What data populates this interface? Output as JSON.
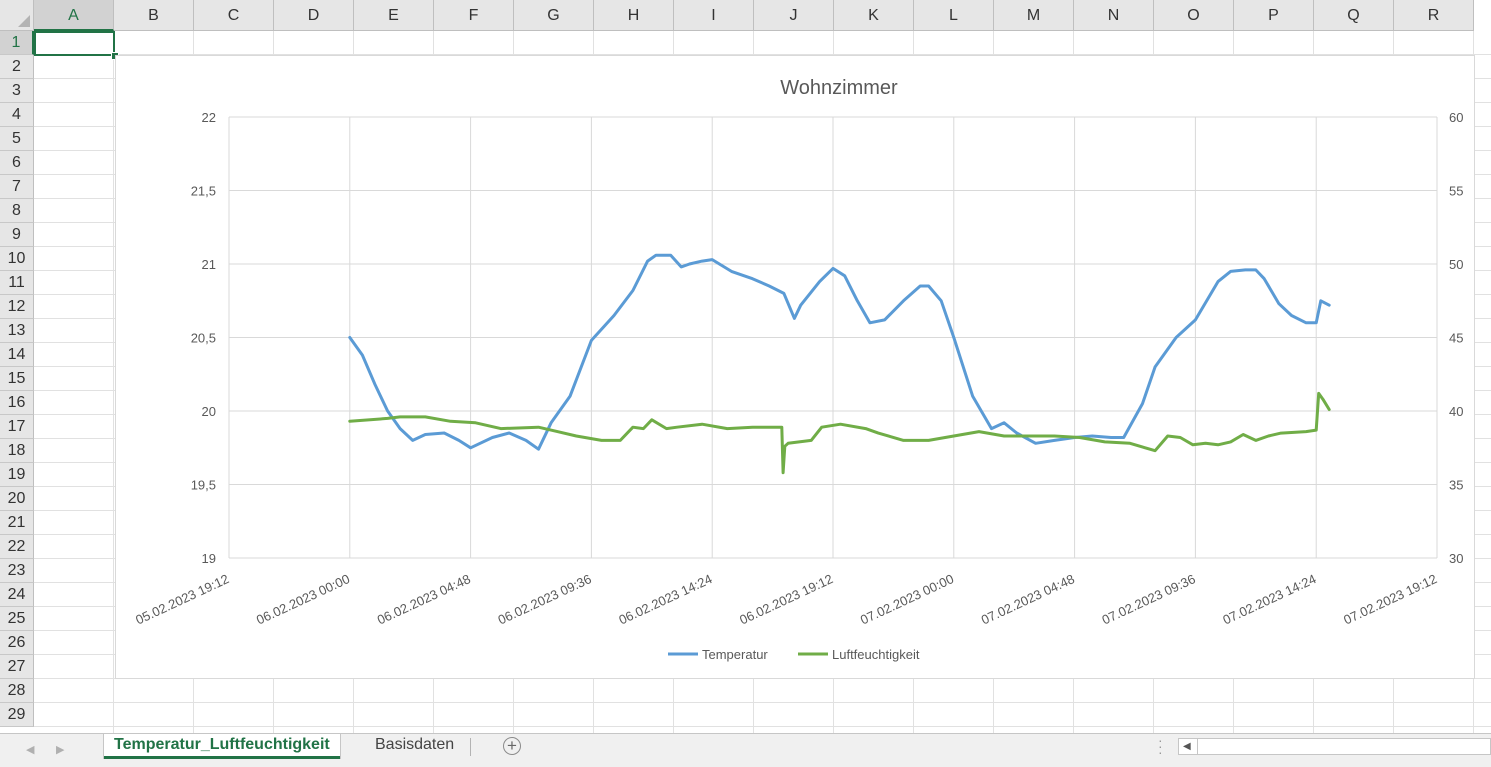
{
  "sheet": {
    "columns": [
      "A",
      "B",
      "C",
      "D",
      "E",
      "F",
      "G",
      "H",
      "I",
      "J",
      "K",
      "L",
      "M",
      "N",
      "O",
      "P",
      "Q",
      "R"
    ],
    "rows": [
      "1",
      "2",
      "3",
      "4",
      "5",
      "6",
      "7",
      "8",
      "9",
      "10",
      "11",
      "12",
      "13",
      "14",
      "15",
      "16",
      "17",
      "18",
      "19",
      "20",
      "21",
      "22",
      "23",
      "24",
      "25",
      "26",
      "27",
      "28",
      "29"
    ],
    "selected_cell": "A1"
  },
  "tabs": [
    {
      "label": "Temperatur_Luftfeuchtigkeit",
      "active": true
    },
    {
      "label": "Basisdaten",
      "active": false
    }
  ],
  "icons": {
    "add_sheet": "plus-circle-icon",
    "nav_prev": "triangle-left-icon",
    "nav_next": "triangle-right-icon",
    "scroll_left": "triangle-left-icon"
  },
  "colors": {
    "accent": "#217346",
    "temperature": "#5b9bd5",
    "humidity": "#70ad47"
  },
  "chart_data": {
    "type": "line",
    "title": "Wohnzimmer",
    "xlabel": "",
    "ylabel": "",
    "x_ticks": [
      "05.02.2023 19:12",
      "06.02.2023 00:00",
      "06.02.2023 04:48",
      "06.02.2023 09:36",
      "06.02.2023 14:24",
      "06.02.2023 19:12",
      "07.02.2023 00:00",
      "07.02.2023 04:48",
      "07.02.2023 09:36",
      "07.02.2023 14:24",
      "07.02.2023 19:12"
    ],
    "y_left_ticks": [
      "19",
      "19,5",
      "20",
      "20,5",
      "21",
      "21,5",
      "22"
    ],
    "y_right_ticks": [
      "30",
      "35",
      "40",
      "45",
      "50",
      "55",
      "60"
    ],
    "ylim_left": [
      19,
      22
    ],
    "ylim_right": [
      30,
      60
    ],
    "grid": true,
    "legend_position": "bottom",
    "series": [
      {
        "name": "Temperatur",
        "axis": "left",
        "color": "#5b9bd5",
        "x": [
          "06.02.2023 00:00",
          "06.02.2023 00:30",
          "06.02.2023 01:00",
          "06.02.2023 01:30",
          "06.02.2023 02:00",
          "06.02.2023 02:30",
          "06.02.2023 03:00",
          "06.02.2023 03:45",
          "06.02.2023 04:20",
          "06.02.2023 04:48",
          "06.02.2023 05:40",
          "06.02.2023 06:20",
          "06.02.2023 07:00",
          "06.02.2023 07:30",
          "06.02.2023 08:00",
          "06.02.2023 08:45",
          "06.02.2023 09:36",
          "06.02.2023 10:30",
          "06.02.2023 11:15",
          "06.02.2023 11:50",
          "06.02.2023 12:10",
          "06.02.2023 12:45",
          "06.02.2023 13:10",
          "06.02.2023 13:30",
          "06.02.2023 14:00",
          "06.02.2023 14:24",
          "06.02.2023 15:10",
          "06.02.2023 16:00",
          "06.02.2023 16:40",
          "06.02.2023 17:15",
          "06.02.2023 17:40",
          "06.02.2023 17:55",
          "06.02.2023 18:40",
          "06.02.2023 19:12",
          "06.02.2023 19:40",
          "06.02.2023 20:10",
          "06.02.2023 20:40",
          "06.02.2023 21:15",
          "06.02.2023 22:00",
          "06.02.2023 22:40",
          "06.02.2023 23:00",
          "06.02.2023 23:30",
          "07.02.2023 00:00",
          "07.02.2023 00:45",
          "07.02.2023 01:30",
          "07.02.2023 02:00",
          "07.02.2023 02:30",
          "07.02.2023 03:15",
          "07.02.2023 04:00",
          "07.02.2023 04:48",
          "07.02.2023 05:30",
          "07.02.2023 06:15",
          "07.02.2023 06:45",
          "07.02.2023 07:30",
          "07.02.2023 08:00",
          "07.02.2023 08:50",
          "07.02.2023 09:36",
          "07.02.2023 10:30",
          "07.02.2023 11:00",
          "07.02.2023 11:35",
          "07.02.2023 12:00",
          "07.02.2023 12:20",
          "07.02.2023 12:55",
          "07.02.2023 13:25",
          "07.02.2023 14:00",
          "07.02.2023 14:24",
          "07.02.2023 14:35",
          "07.02.2023 14:55"
        ],
        "values": [
          20.5,
          20.38,
          20.18,
          20.0,
          19.88,
          19.8,
          19.84,
          19.85,
          19.8,
          19.75,
          19.82,
          19.85,
          19.8,
          19.74,
          19.92,
          20.1,
          20.48,
          20.65,
          20.82,
          21.02,
          21.06,
          21.06,
          20.98,
          21.0,
          21.02,
          21.03,
          20.95,
          20.9,
          20.85,
          20.8,
          20.63,
          20.72,
          20.88,
          20.97,
          20.92,
          20.75,
          20.6,
          20.62,
          20.75,
          20.85,
          20.85,
          20.75,
          20.5,
          20.1,
          19.88,
          19.92,
          19.85,
          19.78,
          19.8,
          19.82,
          19.83,
          19.82,
          19.82,
          20.05,
          20.3,
          20.5,
          20.62,
          20.88,
          20.95,
          20.96,
          20.96,
          20.9,
          20.73,
          20.65,
          20.6,
          20.6,
          20.75,
          20.72
        ]
      },
      {
        "name": "Luftfeuchtigkeit",
        "axis": "right",
        "color": "#70ad47",
        "x": [
          "06.02.2023 00:00",
          "06.02.2023 01:30",
          "06.02.2023 02:00",
          "06.02.2023 03:00",
          "06.02.2023 04:00",
          "06.02.2023 05:00",
          "06.02.2023 06:00",
          "06.02.2023 07:30",
          "06.02.2023 08:15",
          "06.02.2023 09:00",
          "06.02.2023 10:00",
          "06.02.2023 10:45",
          "06.02.2023 11:15",
          "06.02.2023 11:40",
          "06.02.2023 12:00",
          "06.02.2023 12:35",
          "06.02.2023 13:00",
          "06.02.2023 14:00",
          "06.02.2023 15:00",
          "06.02.2023 16:00",
          "06.02.2023 17:10",
          "06.02.2023 17:13",
          "06.02.2023 17:17",
          "06.02.2023 17:25",
          "06.02.2023 18:20",
          "06.02.2023 18:45",
          "06.02.2023 19:30",
          "06.02.2023 20:30",
          "06.02.2023 21:00",
          "06.02.2023 22:00",
          "06.02.2023 23:00",
          "07.02.2023 00:00",
          "07.02.2023 01:00",
          "07.02.2023 02:00",
          "07.02.2023 03:00",
          "07.02.2023 04:00",
          "07.02.2023 05:00",
          "07.02.2023 06:00",
          "07.02.2023 07:00",
          "07.02.2023 08:00",
          "07.02.2023 08:30",
          "07.02.2023 09:00",
          "07.02.2023 09:30",
          "07.02.2023 10:00",
          "07.02.2023 10:30",
          "07.02.2023 11:00",
          "07.02.2023 11:30",
          "07.02.2023 12:00",
          "07.02.2023 12:30",
          "07.02.2023 13:00",
          "07.02.2023 14:00",
          "07.02.2023 14:24",
          "07.02.2023 14:30",
          "07.02.2023 14:40",
          "07.02.2023 14:55"
        ],
        "values": [
          39.3,
          39.5,
          39.6,
          39.6,
          39.3,
          39.2,
          38.8,
          38.9,
          38.6,
          38.3,
          38.0,
          38.0,
          38.9,
          38.8,
          39.4,
          38.8,
          38.9,
          39.1,
          38.8,
          38.9,
          38.9,
          35.8,
          37.6,
          37.8,
          38.0,
          38.9,
          39.1,
          38.8,
          38.5,
          38.0,
          38.0,
          38.3,
          38.6,
          38.3,
          38.3,
          38.3,
          38.2,
          37.9,
          37.8,
          37.3,
          38.3,
          38.2,
          37.7,
          37.8,
          37.7,
          37.9,
          38.4,
          38.0,
          38.3,
          38.5,
          38.6,
          38.7,
          41.2,
          40.8,
          40.1
        ]
      }
    ]
  }
}
